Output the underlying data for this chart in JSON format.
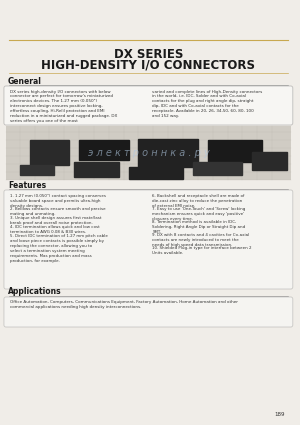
{
  "title_line1": "DX SERIES",
  "title_line2": "HIGH-DENSITY I/O CONNECTORS",
  "bg_color": "#f0ede8",
  "section_general_title": "General",
  "general_text_left": "DX series high-density I/O connectors with below connector are perfect for tomorrow's miniaturized electronics devices. The 1.27 mm (0.050\") interconnect design ensures positive locking, effortless coupling, Hi-ReliI protection and EMI reduction in a miniaturized and rugged package. DX series offers you one of the most",
  "general_text_right": "varied and complete lines of High-Density connectors in the world, i.e. IDC, Solder and with Co-axial contacts for the plug and right angle dip, straight dip, IDC and with Co-axial contacts for the receptacle. Available in 20, 26, 34,50, 60, 80, 100 and 152 way.",
  "features_title": "Features",
  "features_left": [
    "1.27 mm (0.050\") contact spacing conserves valuable board space and permits ultra-high density designs.",
    "Bellows contacts ensure smooth and precise mating and unmating.",
    "Unique shell design assures first mate/last break proof and overall noise protection.",
    "IDC termination allows quick and low cost termination to AWG 0.08 & B30 wires.",
    "Direct IDC termination of 1.27 mm pitch cable and loose piece contacts is possible simply by replacing the connector, allowing you to select a termination system meeting requirements. Mas production and mass production, for example."
  ],
  "features_right": [
    "Backshell and receptacle shell are made of die-cast zinc alloy to reduce the penetration of external EMI noise.",
    "Easy to use 'One-Touch' and 'Screw' locking mechanism ensures quick and easy 'positive' closures every time.",
    "Termination method is available in IDC, Soldering, Right Angle Dip or Straight Dip and SMT.",
    "DX with 8 contacts and 4 cavities for Co-axial contacts are newly introduced to meet the needs of high speed data transmission.",
    "Shielded Plug-in type for interface between 2 Units available."
  ],
  "applications_title": "Applications",
  "applications_text": "Office Automation, Computers, Communications Equipment, Factory Automation, Home Automation and other commercial applications needing high density interconnections.",
  "page_number": "189",
  "title_color": "#1a1a1a",
  "line_color_top": "#c8a850",
  "line_color_bottom": "#888888",
  "box_border_color": "#888888",
  "section_title_color": "#1a1a1a",
  "text_color": "#333333"
}
